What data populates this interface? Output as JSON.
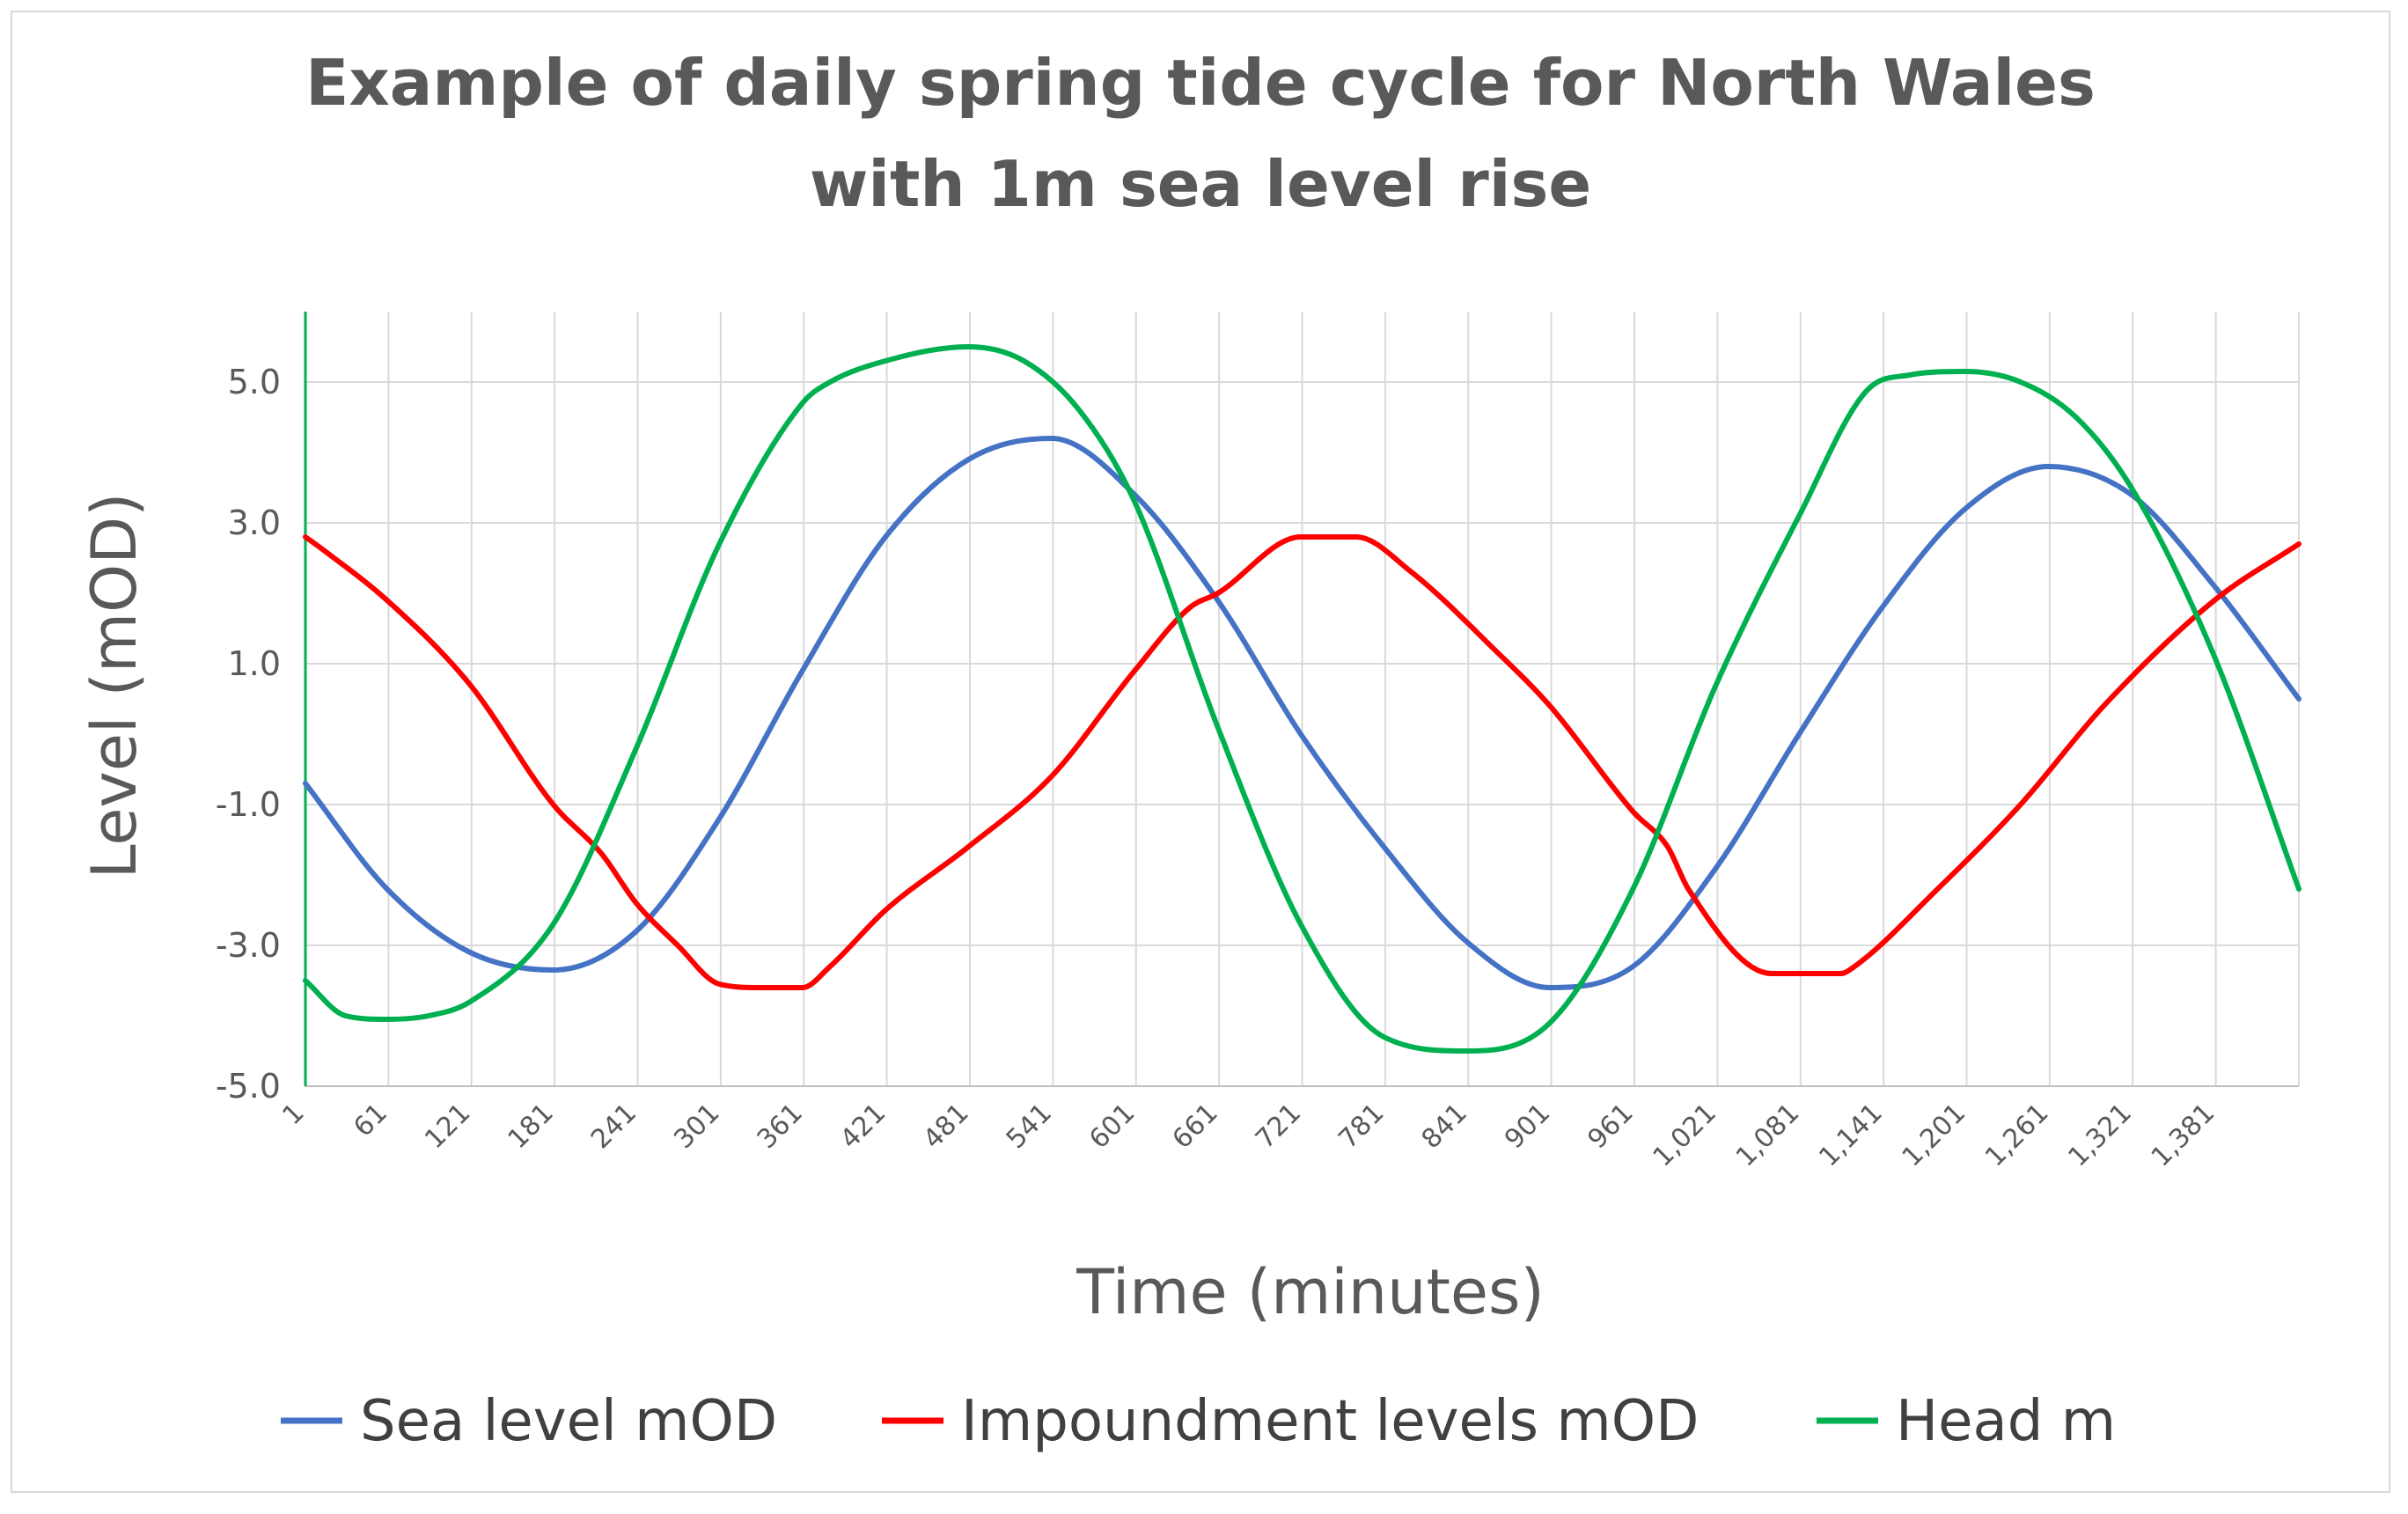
{
  "chart_data": {
    "type": "line",
    "title": "Example of daily spring tide cycle for North Wales with 1m sea level rise",
    "title_lines": [
      "Example of daily spring tide cycle for North Wales",
      "with 1m sea level rise"
    ],
    "xlabel": "Time (minutes)",
    "ylabel": "Level (mOD)",
    "xlim": [
      1,
      1441
    ],
    "ylim": [
      -5,
      6
    ],
    "y_ticks": [
      5.0,
      3.0,
      1.0,
      -1.0,
      -3.0,
      -5.0
    ],
    "y_tick_labels": [
      "5.0",
      "3.0",
      "1.0",
      "-1.0",
      "-3.0",
      "-5.0"
    ],
    "x_ticks": [
      1,
      61,
      121,
      181,
      241,
      301,
      361,
      421,
      481,
      541,
      601,
      661,
      721,
      781,
      841,
      901,
      961,
      1021,
      1081,
      1141,
      1201,
      1261,
      1321,
      1381
    ],
    "x_tick_labels": [
      "1",
      "61",
      "121",
      "181",
      "241",
      "301",
      "361",
      "421",
      "481",
      "541",
      "601",
      "661",
      "721",
      "781",
      "841",
      "901",
      "961",
      "1,021",
      "1,081",
      "1,141",
      "1,201",
      "1,261",
      "1,321",
      "1,381"
    ],
    "grid": true,
    "legend_position": "bottom",
    "series": [
      {
        "name": "Sea level mOD",
        "color": "#4472c4",
        "x": [
          1,
          60,
          120,
          180,
          240,
          300,
          360,
          420,
          480,
          540,
          600,
          660,
          720,
          780,
          840,
          900,
          960,
          1020,
          1080,
          1140,
          1200,
          1260,
          1320,
          1380,
          1441
        ],
        "y": [
          -0.7,
          -2.2,
          -3.1,
          -3.35,
          -2.8,
          -1.2,
          0.9,
          2.8,
          3.9,
          4.2,
          3.4,
          1.9,
          0.0,
          -1.6,
          -2.95,
          -3.6,
          -3.3,
          -1.9,
          0.0,
          1.8,
          3.2,
          3.8,
          3.4,
          2.1,
          0.5
        ]
      },
      {
        "name": "Impoundment levels mOD",
        "color": "#ff0000",
        "x": [
          1,
          15,
          60,
          120,
          180,
          215,
          240,
          270,
          300,
          330,
          360,
          380,
          420,
          480,
          540,
          600,
          640,
          660,
          720,
          760,
          800,
          860,
          900,
          960,
          985,
          1000,
          1060,
          1110,
          1120,
          1180,
          1240,
          1300,
          1380,
          1441
        ],
        "y": [
          2.8,
          2.6,
          1.9,
          0.7,
          -1.0,
          -1.7,
          -2.4,
          -3.0,
          -3.55,
          -3.6,
          -3.6,
          -3.3,
          -2.5,
          -1.6,
          -0.6,
          0.9,
          1.8,
          2.0,
          2.8,
          2.8,
          2.3,
          1.2,
          0.4,
          -1.1,
          -1.6,
          -2.2,
          -3.4,
          -3.4,
          -3.3,
          -2.2,
          -1.0,
          0.4,
          1.9,
          2.7
        ]
      },
      {
        "name": "Head m",
        "color": "#00b050",
        "x": [
          1,
          30,
          60,
          90,
          120,
          180,
          240,
          300,
          360,
          380,
          420,
          480,
          520,
          560,
          600,
          660,
          720,
          780,
          840,
          900,
          960,
          1020,
          1080,
          1130,
          1160,
          1200,
          1240,
          1280,
          1320,
          1380,
          1441
        ],
        "y": [
          -3.5,
          -4.0,
          -4.05,
          -4.0,
          -3.8,
          -2.7,
          -0.2,
          2.7,
          4.7,
          5.0,
          5.3,
          5.5,
          5.3,
          4.6,
          3.3,
          0.1,
          -2.7,
          -4.3,
          -4.5,
          -4.1,
          -2.2,
          0.7,
          3.1,
          4.9,
          5.1,
          5.15,
          5.0,
          4.5,
          3.5,
          1.1,
          -2.2
        ]
      }
    ]
  }
}
